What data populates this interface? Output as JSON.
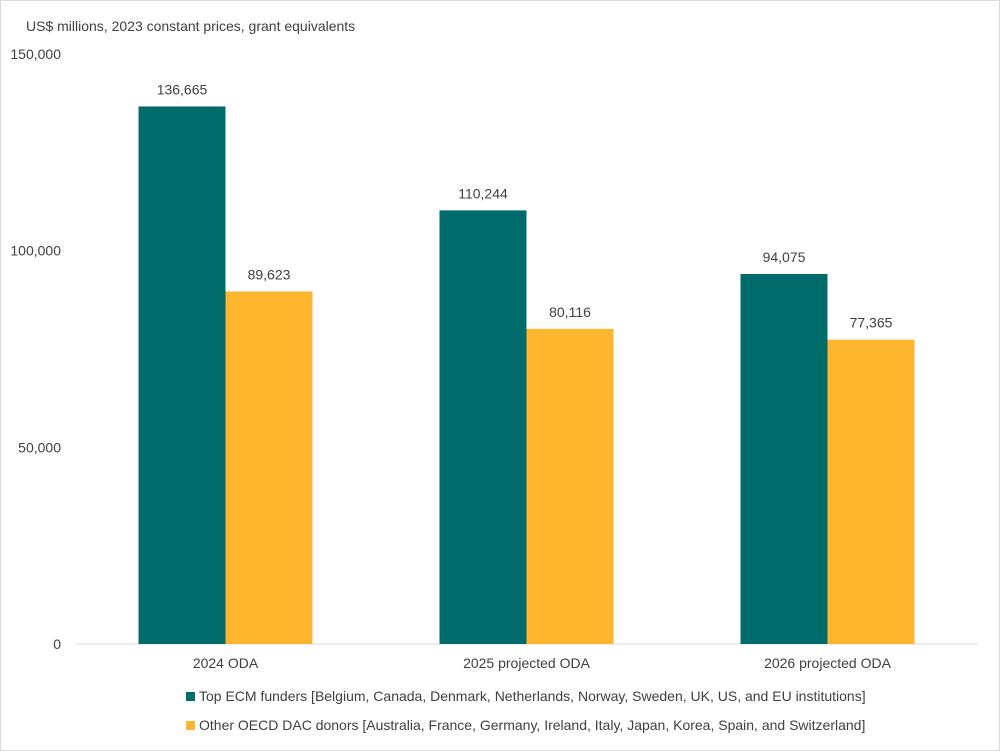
{
  "chart_data": {
    "type": "bar",
    "ylabel": "US$ millions, 2023 constant prices, grant equivalents",
    "categories": [
      "2024 ODA",
      "2025 projected ODA",
      "2026 projected ODA"
    ],
    "series": [
      {
        "name": "Top ECM funders [Belgium, Canada, Denmark, Netherlands, Norway, Sweden, UK, US, and EU institutions]",
        "values": [
          136665,
          110244,
          94075
        ],
        "labels": [
          "136,665",
          "110,244",
          "94,075"
        ],
        "color": "#006B6B"
      },
      {
        "name": "Other OECD DAC donors [Australia, France, Germany, Ireland, Italy, Japan, Korea, Spain, and Switzerland]",
        "values": [
          89623,
          80116,
          77365
        ],
        "labels": [
          "89,623",
          "80,116",
          "77,365"
        ],
        "color": "#FFB52E"
      }
    ],
    "ylim": [
      0,
      150000
    ],
    "yticks": [
      0,
      50000,
      100000,
      150000
    ],
    "ytick_labels": [
      "0",
      "50,000",
      "100,000",
      "150,000"
    ],
    "grid": false,
    "legend": "bottom"
  }
}
